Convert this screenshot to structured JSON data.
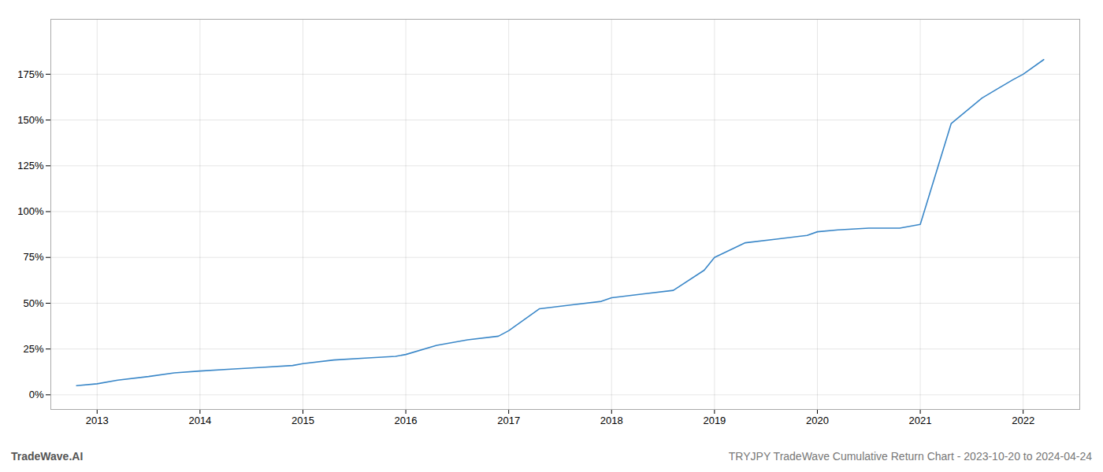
{
  "chart_data": {
    "type": "line",
    "title": "TRYJPY TradeWave Cumulative Return Chart - 2023-10-20 to 2024-04-24",
    "annotations": [
      "TradeWave.AI"
    ],
    "color": "#3a87c8",
    "grid": true,
    "x": [
      2012.8,
      2013.0,
      2013.2,
      2013.5,
      2013.75,
      2014.0,
      2014.3,
      2014.6,
      2014.9,
      2015.0,
      2015.3,
      2015.6,
      2015.9,
      2016.0,
      2016.3,
      2016.6,
      2016.9,
      2017.0,
      2017.3,
      2017.6,
      2017.9,
      2018.0,
      2018.3,
      2018.6,
      2018.9,
      2019.0,
      2019.3,
      2019.6,
      2019.9,
      2020.0,
      2020.2,
      2020.5,
      2020.8,
      2021.0,
      2021.3,
      2021.6,
      2021.9,
      2022.0,
      2022.2
    ],
    "values": [
      5,
      6,
      8,
      10,
      12,
      13,
      14,
      15,
      16,
      17,
      19,
      20,
      21,
      22,
      27,
      30,
      32,
      35,
      47,
      49,
      51,
      53,
      55,
      57,
      68,
      75,
      83,
      85,
      87,
      89,
      90,
      91,
      91,
      93,
      148,
      162,
      172,
      175,
      183
    ],
    "xlim": [
      2012.55,
      2022.55
    ],
    "ylim": [
      -8,
      205
    ],
    "xticks": [
      2013,
      2014,
      2015,
      2016,
      2017,
      2018,
      2019,
      2020,
      2021,
      2022
    ],
    "yticks": [
      {
        "value": 0,
        "label": "0%"
      },
      {
        "value": 25,
        "label": "25%"
      },
      {
        "value": 50,
        "label": "50%"
      },
      {
        "value": 75,
        "label": "75%"
      },
      {
        "value": 100,
        "label": "100%"
      },
      {
        "value": 125,
        "label": "125%"
      },
      {
        "value": 150,
        "label": "150%"
      },
      {
        "value": 175,
        "label": "175%"
      }
    ]
  }
}
